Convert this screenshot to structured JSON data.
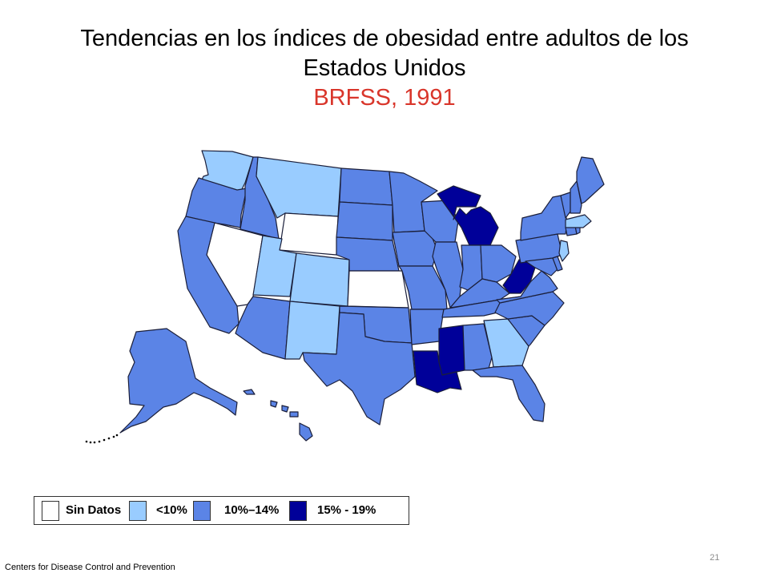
{
  "title": {
    "line1": "Tendencias en los índices de obesidad entre adultos de los",
    "line2": "Estados Unidos",
    "subtitle": "BRFSS, 1991"
  },
  "legend": {
    "items": [
      {
        "label": "Sin Datos",
        "color": "#ffffff"
      },
      {
        "label": "<10%",
        "color": "#99ccff"
      },
      {
        "label": "10%–14%",
        "color": "#5b84e6"
      },
      {
        "label": "15% - 19%",
        "color": "#000099"
      }
    ]
  },
  "colors": {
    "no_data": "#ffffff",
    "lt10": "#99ccff",
    "r10_14": "#5b84e6",
    "r15_19": "#000099",
    "border": "#1b1f3a",
    "subtitle": "#d9362b"
  },
  "map_categories": {
    "no_data": [
      "Wyoming",
      "Nevada",
      "Kansas"
    ],
    "lt10": [
      "Washington",
      "Montana",
      "Utah",
      "Colorado",
      "New Mexico",
      "Georgia",
      "Massachusetts",
      "New Jersey"
    ],
    "r10_14": [
      "Oregon",
      "Idaho",
      "California",
      "Arizona",
      "North Dakota",
      "South Dakota",
      "Nebraska",
      "Oklahoma",
      "Texas",
      "Minnesota",
      "Iowa",
      "Missouri",
      "Arkansas",
      "Wisconsin",
      "Illinois",
      "Indiana",
      "Ohio",
      "Kentucky",
      "Tennessee",
      "Alabama",
      "Florida",
      "South Carolina",
      "North Carolina",
      "Virginia",
      "Maryland",
      "Delaware",
      "Pennsylvania",
      "New York",
      "Vermont",
      "New Hampshire",
      "Maine",
      "Connecticut",
      "Rhode Island",
      "Alaska",
      "Hawaii"
    ],
    "r15_19": [
      "Michigan",
      "West Virginia",
      "Mississippi",
      "Louisiana"
    ]
  },
  "page_number": "21",
  "footer": "Centers  for Disease Control and Prevention"
}
